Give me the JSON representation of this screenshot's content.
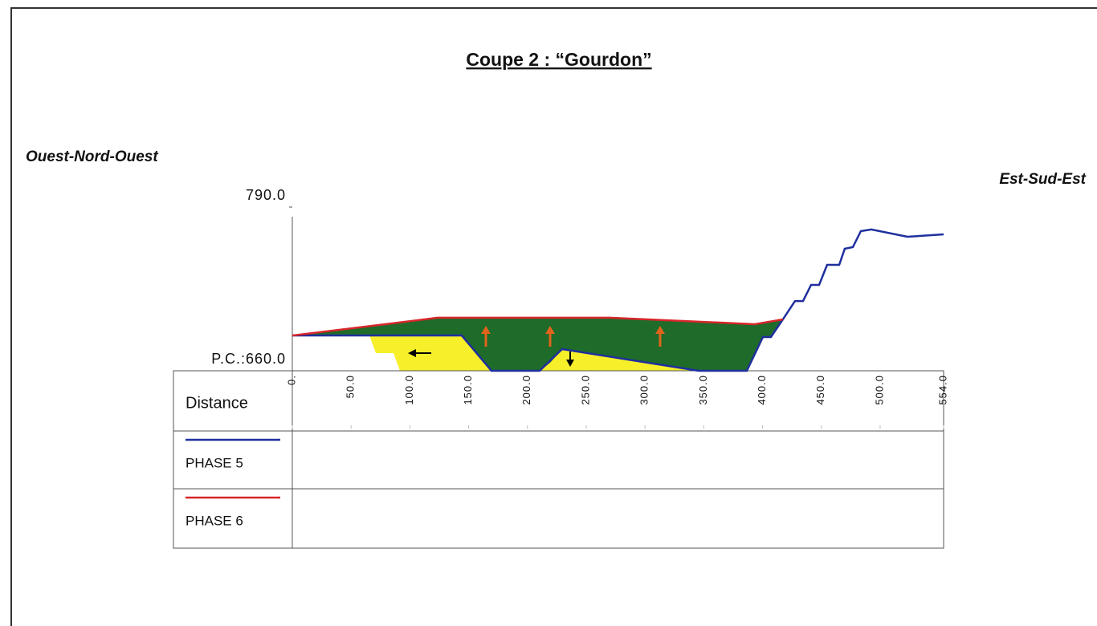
{
  "chart_data": {
    "type": "line",
    "title": "Coupe 2 : “Gourdon”",
    "left_label": "Ouest-Nord-Ouest",
    "right_label": "Est-Sud-Est",
    "x_label": "Distance",
    "xlim": [
      0,
      554
    ],
    "ylim": [
      660,
      790
    ],
    "xticks": [
      {
        "value": 0,
        "label": "0."
      },
      {
        "value": 50,
        "label": "50.0"
      },
      {
        "value": 100,
        "label": "100.0"
      },
      {
        "value": 150,
        "label": "150.0"
      },
      {
        "value": 200,
        "label": "200.0"
      },
      {
        "value": 250,
        "label": "250.0"
      },
      {
        "value": 300,
        "label": "300.0"
      },
      {
        "value": 350,
        "label": "350.0"
      },
      {
        "value": 400,
        "label": "400.0"
      },
      {
        "value": 450,
        "label": "450.0"
      },
      {
        "value": 500,
        "label": "500.0"
      },
      {
        "value": 554,
        "label": "554.0"
      }
    ],
    "yticks": [
      {
        "value": 660,
        "label": "P.C.:660.0"
      },
      {
        "value": 790,
        "label": "790.0"
      }
    ],
    "series": [
      {
        "name": "PHASE 5",
        "color": "#1f2f9e",
        "x": [
          0,
          144.1,
          169.4,
          210.4,
          229.5,
          345.6,
          386.6,
          400.3,
          407.1,
          417.3,
          427.6,
          434.4,
          441.3,
          448.1,
          454.9,
          465.2,
          469.9,
          476.8,
          483.6,
          492.5,
          523.2,
          554
        ],
        "values": [
          688,
          688,
          660,
          660,
          677.2,
          660,
          660,
          686.8,
          686.8,
          700.8,
          715.4,
          715.4,
          728.2,
          728.2,
          744.1,
          744.1,
          756.9,
          758.2,
          770.9,
          772.2,
          766.4,
          768.3
        ]
      },
      {
        "name": "PHASE 6",
        "color": "#d8262a",
        "x": [
          0,
          123.6,
          270.5,
          393.4,
          417.3
        ],
        "values": [
          688,
          702.1,
          702.1,
          697,
          700.8
        ]
      }
    ]
  }
}
